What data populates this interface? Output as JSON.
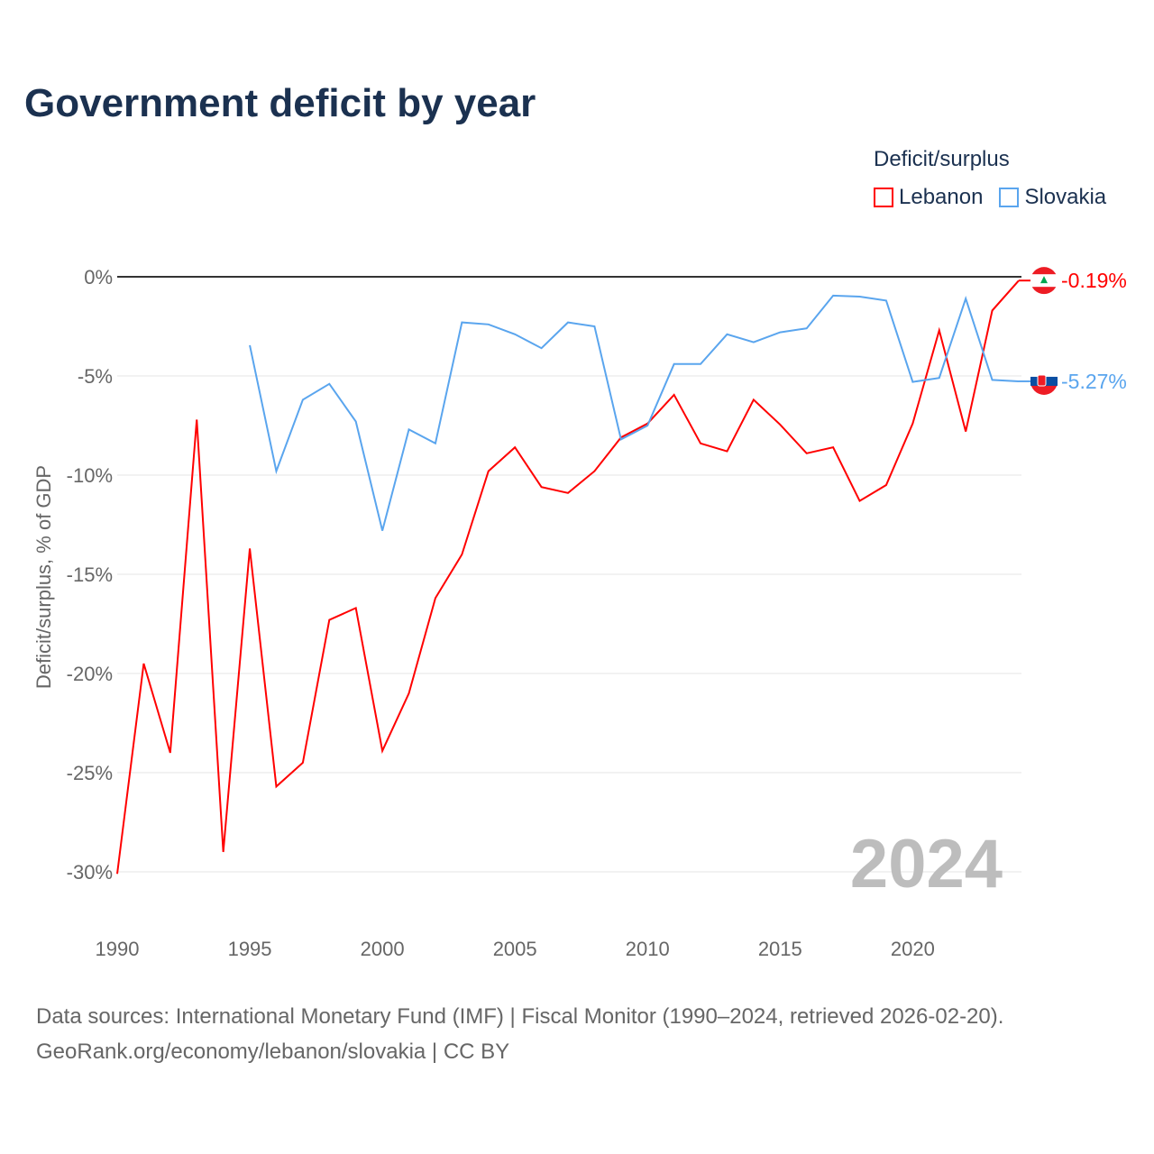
{
  "title": "Government deficit by year",
  "legend": {
    "title": "Deficit/surplus",
    "items": [
      {
        "label": "Lebanon",
        "color": "#ff0000"
      },
      {
        "label": "Slovakia",
        "color": "#5aa5ee"
      }
    ]
  },
  "source": {
    "line1": "Data sources: International Monetary Fund (IMF) | Fiscal Monitor (1990–2024, retrieved 2026-02-20).",
    "line2": "GeoRank.org/economy/lebanon/slovakia | CC BY"
  },
  "chart_data": {
    "type": "line",
    "title": "Government deficit by year",
    "xlabel": "",
    "ylabel": "Deficit/surplus, % of GDP",
    "xlim": [
      1990,
      2024
    ],
    "ylim": [
      -30,
      0
    ],
    "xticks": [
      "1990",
      "1995",
      "2000",
      "2005",
      "2010",
      "2015",
      "2020"
    ],
    "yticks": [
      "0%",
      "-5%",
      "-10%",
      "-15%",
      "-20%",
      "-25%",
      "-30%"
    ],
    "watermark": "2024",
    "series": [
      {
        "name": "Lebanon",
        "color": "#ff0000",
        "end_label": "-0.19%",
        "start": 1990,
        "values": [
          -30.1,
          -19.5,
          -24.0,
          -7.2,
          -29.0,
          -13.7,
          -25.7,
          -24.5,
          -17.3,
          -16.7,
          -23.9,
          -21.0,
          -16.2,
          -14.0,
          -9.8,
          -8.6,
          -10.6,
          -10.9,
          -9.8,
          -8.1,
          -7.4,
          -5.95,
          -8.4,
          -8.8,
          -6.2,
          -7.45,
          -8.9,
          -8.6,
          -11.3,
          -10.5,
          -7.4,
          -2.7,
          -7.8,
          -1.7,
          -0.19
        ]
      },
      {
        "name": "Slovakia",
        "color": "#5aa5ee",
        "end_label": "-5.27%",
        "start": 1995,
        "values": [
          -3.45,
          -9.8,
          -6.2,
          -5.4,
          -7.3,
          -12.8,
          -7.7,
          -8.4,
          -2.3,
          -2.4,
          -2.9,
          -3.6,
          -2.3,
          -2.5,
          -8.2,
          -7.5,
          -4.4,
          -4.4,
          -2.9,
          -3.3,
          -2.8,
          -2.6,
          -0.95,
          -1.0,
          -1.2,
          -5.3,
          -5.1,
          -1.1,
          -5.2,
          -5.27
        ]
      }
    ]
  }
}
